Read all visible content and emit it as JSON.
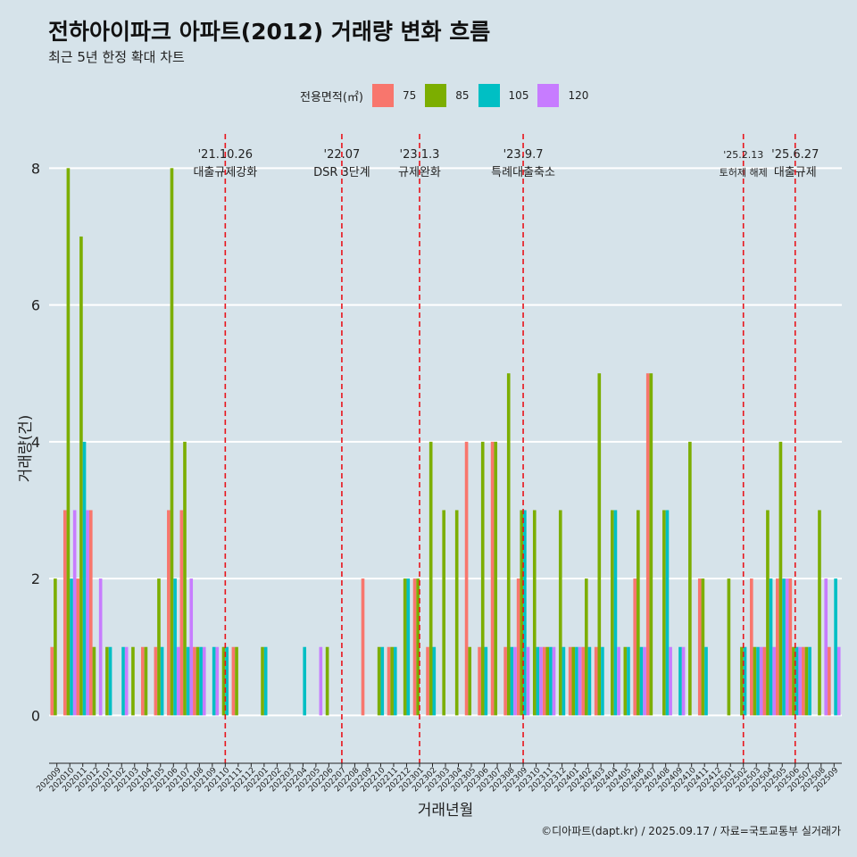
{
  "title": "전하아이파크 아파트(2012) 거래량 변화 흐름",
  "subtitle": "최근 5년 한정 확대 차트",
  "caption": "©디아파트(dapt.kr) / 2025.09.17 / 자료=국토교통부 실거래가",
  "legend_title": "전용면적(㎡)",
  "colors": {
    "background": "#d6e3ea",
    "event_line": "#e8141b",
    "series": [
      "#f8766d",
      "#7cae00",
      "#00bfc4",
      "#c77cff"
    ]
  },
  "chart_data": {
    "type": "bar",
    "xlabel": "거래년월",
    "ylabel": "거래량(건)",
    "ylim": [
      -0.7,
      8.5
    ],
    "yticks": [
      0,
      2,
      4,
      6,
      8
    ],
    "grid": true,
    "legend_position": "top",
    "categories": [
      "202009",
      "202010",
      "202011",
      "202012",
      "202101",
      "202102",
      "202103",
      "202104",
      "202105",
      "202106",
      "202107",
      "202108",
      "202109",
      "202110",
      "202111",
      "202112",
      "202201",
      "202202",
      "202203",
      "202204",
      "202205",
      "202206",
      "202207",
      "202208",
      "202209",
      "202210",
      "202211",
      "202212",
      "202301",
      "202302",
      "202303",
      "202304",
      "202305",
      "202306",
      "202307",
      "202308",
      "202309",
      "202310",
      "202311",
      "202312",
      "202401",
      "202402",
      "202403",
      "202404",
      "202405",
      "202406",
      "202407",
      "202408",
      "202409",
      "202410",
      "202411",
      "202412",
      "202501",
      "202502",
      "202503",
      "202504",
      "202505",
      "202506",
      "202507",
      "202508",
      "202509"
    ],
    "series": [
      {
        "name": "75",
        "values": [
          1,
          3,
          2,
          3,
          0,
          0,
          0,
          1,
          1,
          3,
          3,
          1,
          0,
          0,
          1,
          0,
          0,
          0,
          0,
          0,
          0,
          0,
          0,
          0,
          2,
          0,
          1,
          0,
          2,
          1,
          0,
          0,
          4,
          1,
          4,
          1,
          2,
          0,
          1,
          0,
          1,
          1,
          1,
          0,
          0,
          2,
          5,
          0,
          0,
          0,
          2,
          0,
          0,
          0,
          2,
          1,
          2,
          2,
          1,
          0,
          1
        ]
      },
      {
        "name": "85",
        "values": [
          2,
          8,
          7,
          1,
          1,
          0,
          1,
          1,
          2,
          8,
          4,
          1,
          0,
          1,
          1,
          0,
          1,
          0,
          0,
          0,
          0,
          1,
          0,
          0,
          0,
          1,
          1,
          2,
          2,
          4,
          3,
          3,
          1,
          4,
          4,
          5,
          3,
          3,
          1,
          3,
          1,
          2,
          5,
          3,
          1,
          3,
          5,
          3,
          0,
          4,
          2,
          0,
          2,
          1,
          1,
          3,
          4,
          1,
          1,
          3,
          0
        ]
      },
      {
        "name": "105",
        "values": [
          0,
          2,
          4,
          0,
          1,
          1,
          0,
          0,
          1,
          2,
          1,
          1,
          1,
          1,
          0,
          0,
          1,
          0,
          0,
          1,
          0,
          0,
          0,
          0,
          0,
          1,
          1,
          2,
          0,
          1,
          0,
          0,
          0,
          1,
          0,
          1,
          3,
          1,
          1,
          1,
          1,
          1,
          1,
          3,
          1,
          1,
          0,
          3,
          1,
          0,
          1,
          0,
          0,
          1,
          1,
          2,
          2,
          1,
          1,
          0,
          2
        ]
      },
      {
        "name": "120",
        "values": [
          0,
          3,
          3,
          2,
          0,
          1,
          0,
          0,
          0,
          1,
          2,
          1,
          1,
          0,
          0,
          0,
          0,
          0,
          0,
          0,
          1,
          0,
          0,
          0,
          0,
          0,
          0,
          0,
          0,
          0,
          0,
          0,
          0,
          0,
          0,
          1,
          1,
          1,
          1,
          0,
          1,
          0,
          0,
          1,
          0,
          1,
          0,
          1,
          1,
          0,
          0,
          0,
          0,
          0,
          1,
          1,
          2,
          1,
          0,
          2,
          1
        ]
      }
    ],
    "events": [
      {
        "x": "202110",
        "date": "'21.10.26",
        "label": "대출규제강화"
      },
      {
        "x": "202207",
        "date": "'22.07",
        "label": "DSR 3단계"
      },
      {
        "x": "202301",
        "date": "'23.1.3",
        "label": "규제완화"
      },
      {
        "x": "202309",
        "date": "'23.9.7",
        "label": "특례대출축소"
      },
      {
        "x": "202502",
        "date": "'25.2.13",
        "label": "토허제 해제"
      },
      {
        "x": "202506",
        "date": "'25.6.27",
        "label": "대출규제"
      }
    ]
  }
}
